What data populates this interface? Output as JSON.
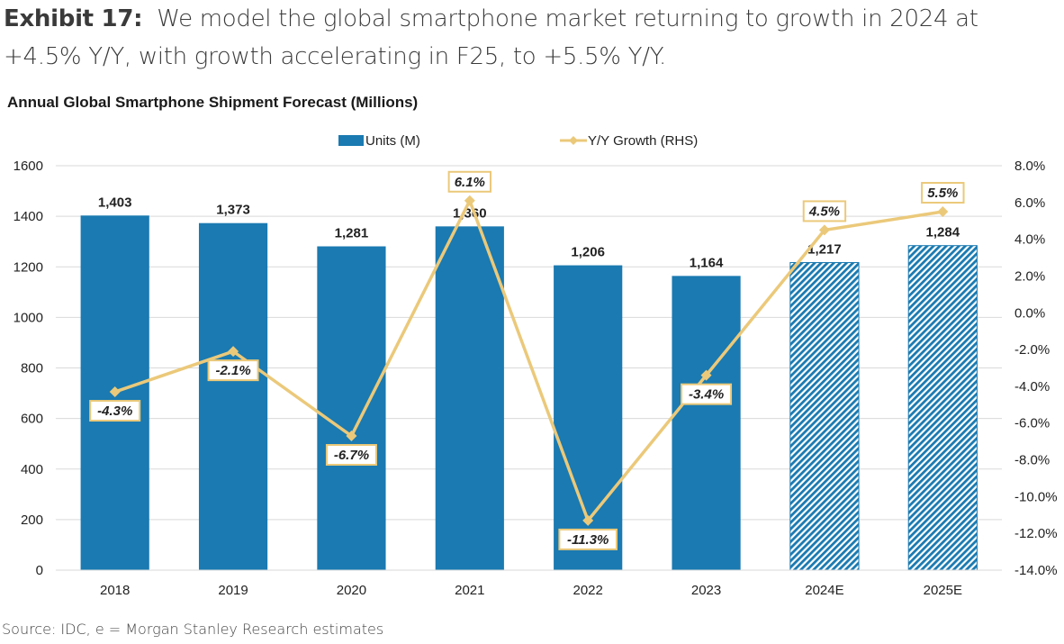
{
  "header": {
    "exhibit_label": "Exhibit 17:",
    "exhibit_text_line1": "We model the global smartphone market returning to growth in 2024 at",
    "exhibit_text_line2": "+4.5% Y/Y, with growth accelerating in F25, to +5.5% Y/Y."
  },
  "footer": {
    "source": "Source: IDC, e = Morgan Stanley Research estimates"
  },
  "chart_data": {
    "type": "bar",
    "title": "Annual Global Smartphone Shipment Forecast (Millions)",
    "categories": [
      "2018",
      "2019",
      "2020",
      "2021",
      "2022",
      "2023",
      "2024E",
      "2025E"
    ],
    "series": [
      {
        "name": "Units (M)",
        "type": "bar",
        "axis": "left",
        "color": "#1a7ab1",
        "values": [
          1403,
          1373,
          1281,
          1360,
          1206,
          1164,
          1217,
          1284
        ],
        "labels": [
          "1,403",
          "1,373",
          "1,281",
          "1,360",
          "1,206",
          "1,164",
          "1,217",
          "1,284"
        ],
        "estimate": [
          false,
          false,
          false,
          false,
          false,
          false,
          true,
          true
        ]
      },
      {
        "name": "Y/Y Growth (RHS)",
        "type": "line",
        "axis": "right",
        "color": "#ebc97a",
        "values": [
          -4.3,
          -2.1,
          -6.7,
          6.1,
          -11.3,
          -3.4,
          4.5,
          5.5
        ],
        "labels": [
          "-4.3%",
          "-2.1%",
          "-6.7%",
          "6.1%",
          "-11.3%",
          "-3.4%",
          "4.5%",
          "5.5%"
        ],
        "label_position": [
          "below",
          "below",
          "below",
          "above",
          "below",
          "below",
          "above",
          "above"
        ]
      }
    ],
    "y_left": {
      "min": 0,
      "max": 1600,
      "step": 200,
      "ticks": [
        "0",
        "200",
        "400",
        "600",
        "800",
        "1000",
        "1200",
        "1400",
        "1600"
      ]
    },
    "y_right": {
      "min": -14,
      "max": 8,
      "step": 2,
      "ticks": [
        "-14.0%",
        "-12.0%",
        "-10.0%",
        "-8.0%",
        "-6.0%",
        "-4.0%",
        "-2.0%",
        "0.0%",
        "2.0%",
        "4.0%",
        "6.0%",
        "8.0%"
      ]
    },
    "xlabel": "",
    "ylabel": "",
    "grid": true,
    "legend": {
      "position": "top-center",
      "items": [
        "Units (M)",
        "Y/Y Growth (RHS)"
      ]
    }
  }
}
